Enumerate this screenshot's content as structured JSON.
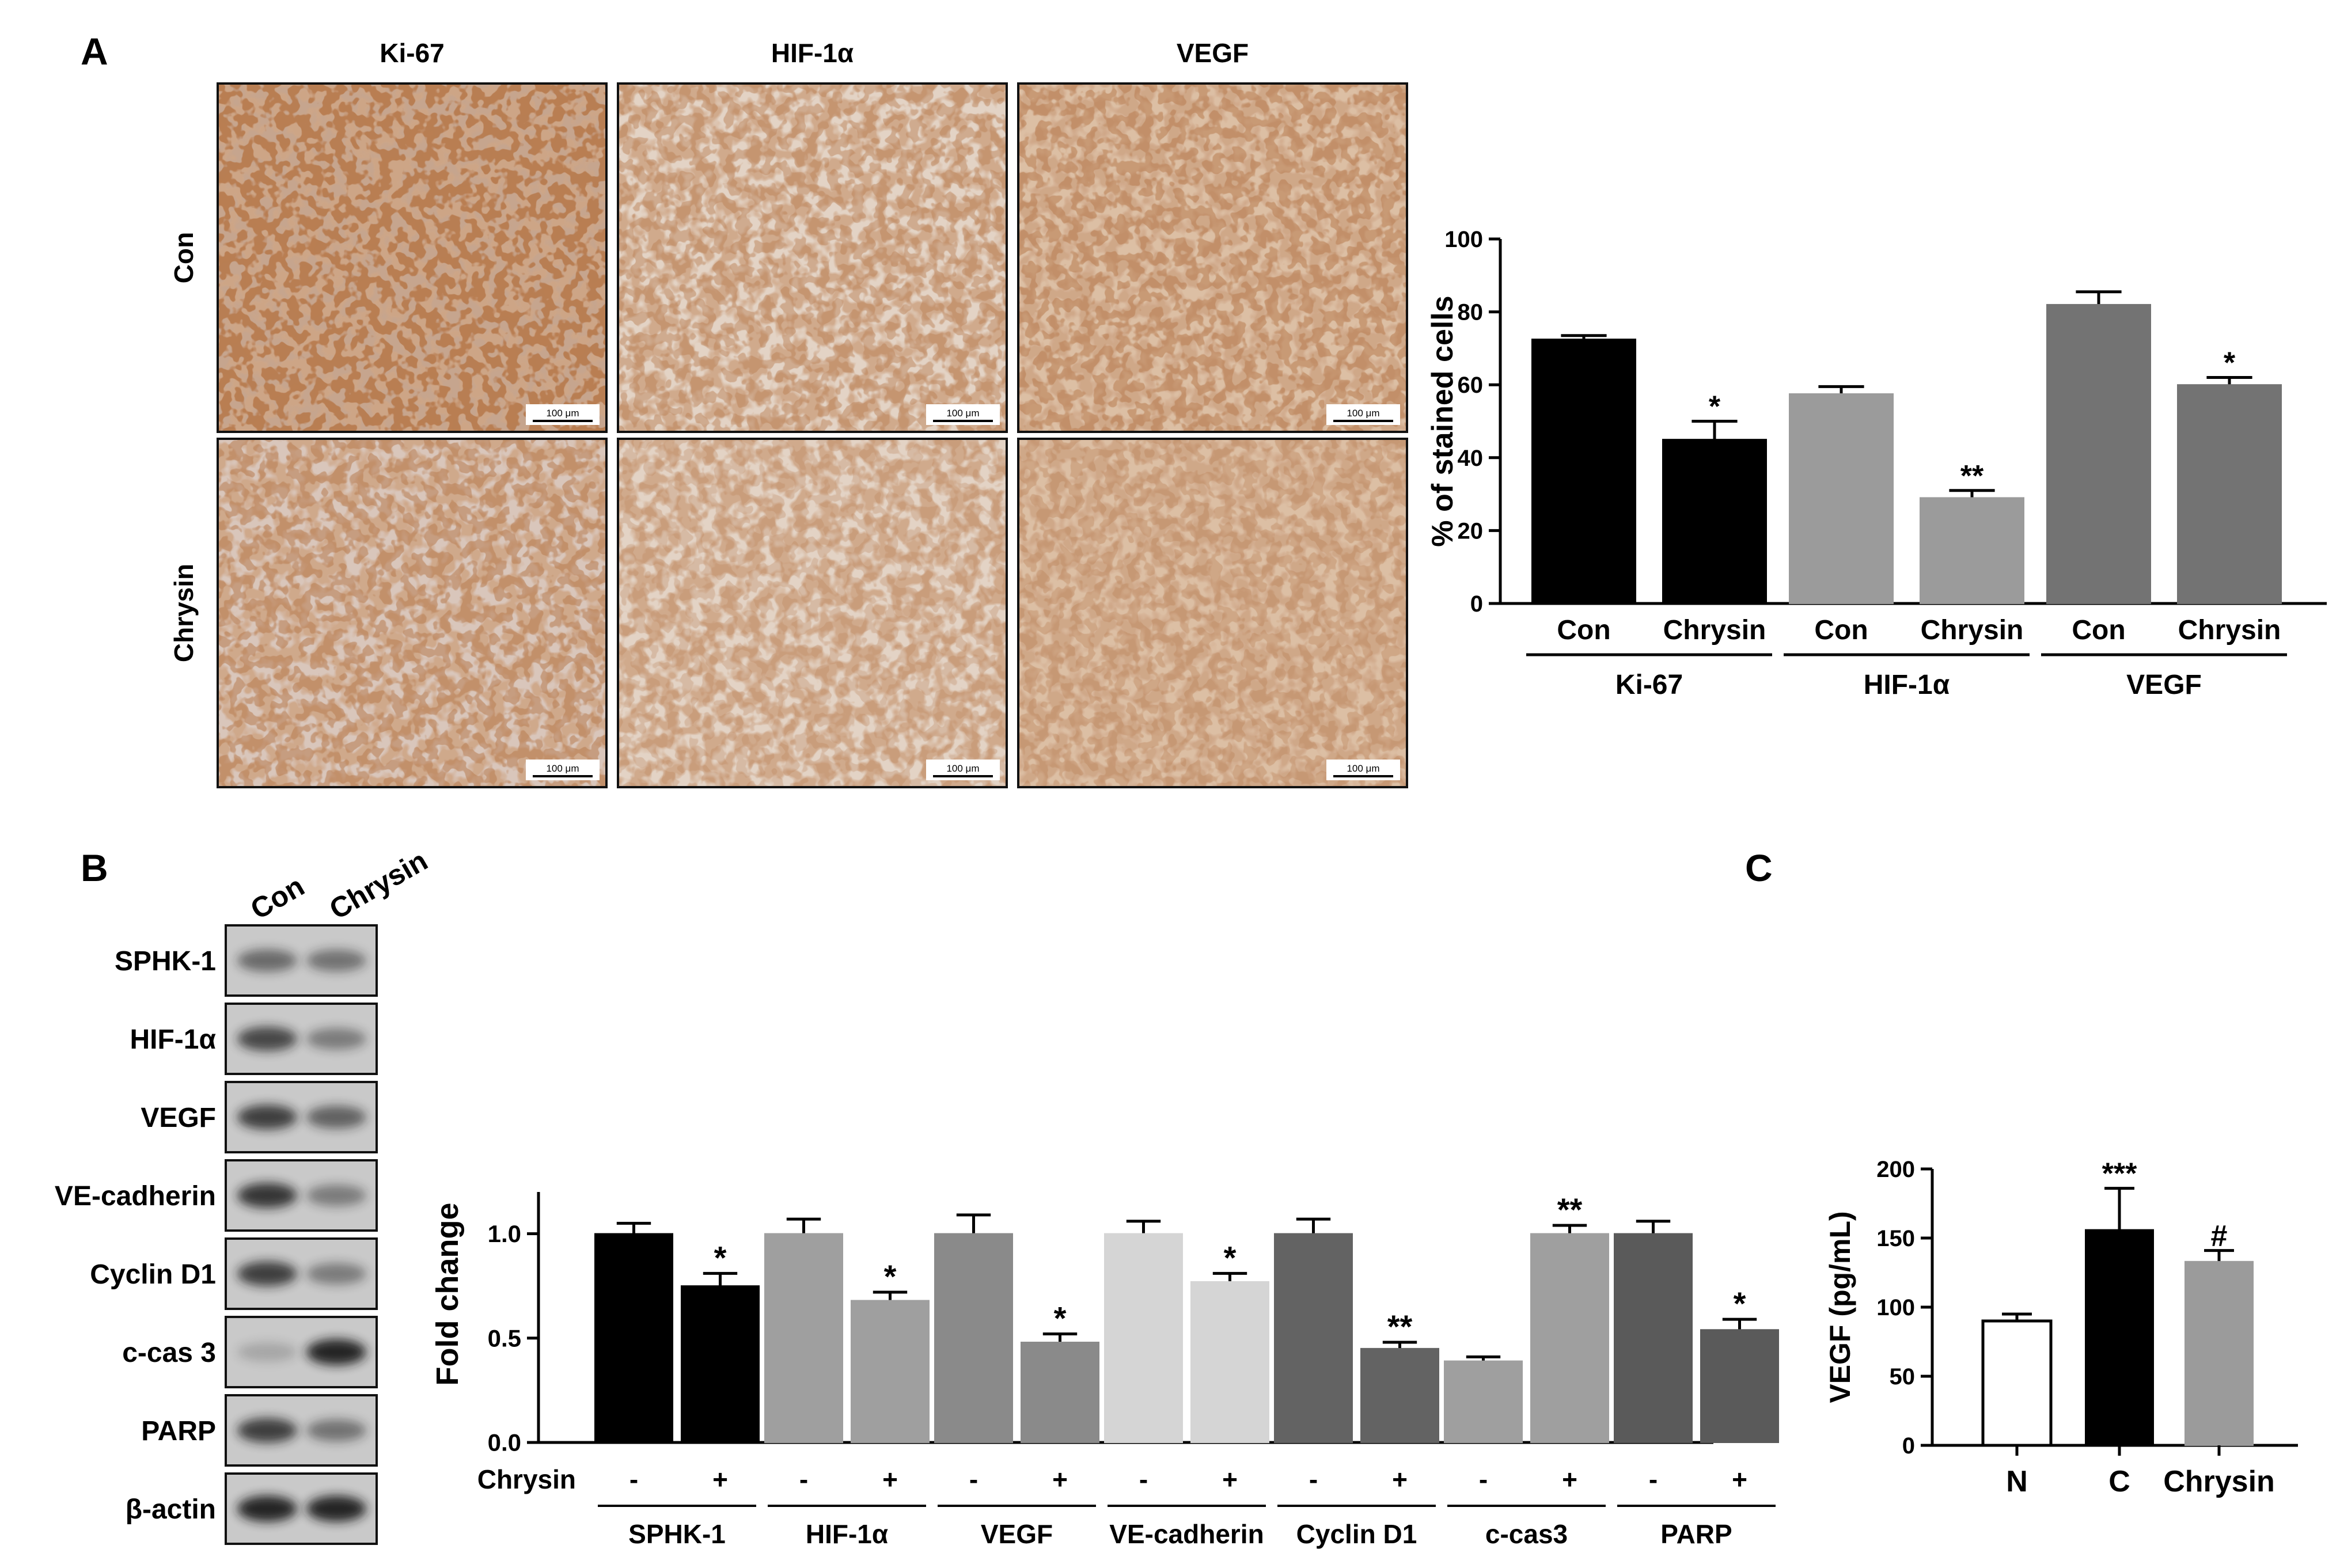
{
  "panel_a": {
    "letter": "A",
    "columns": [
      "Ki-67",
      "HIF-1α",
      "VEGF"
    ],
    "rows": [
      "Con",
      "Chrysin"
    ],
    "scale_bar": "100 μm",
    "stain": {
      "Con": {
        "Ki-67": 0.95,
        "HIF-1α": 0.45,
        "VEGF": 0.55
      },
      "Chrysin": {
        "Ki-67": 0.55,
        "HIF-1α": 0.28,
        "VEGF": 0.35
      }
    }
  },
  "panel_b": {
    "letter": "B",
    "lane_labels": [
      "Con",
      "Chrysin"
    ],
    "blot_labels": [
      "SPHK-1",
      "HIF-1α",
      "VEGF",
      "VE-cadherin",
      "Cyclin D1",
      "c-cas 3",
      "PARP",
      "β-actin"
    ]
  },
  "panel_c": {
    "letter": "C"
  },
  "chart_data": [
    {
      "type": "bar",
      "ylabel": "% of stained cells",
      "ylim": [
        0,
        100
      ],
      "yticks": [
        0,
        20,
        40,
        60,
        80,
        100
      ],
      "groups": [
        "Ki-67",
        "HIF-1α",
        "VEGF"
      ],
      "x_labels": [
        "Con",
        "Chrysin",
        "Con",
        "Chrysin",
        "Con",
        "Chrysin"
      ],
      "values": [
        72.5,
        45,
        57.5,
        29,
        82,
        60
      ],
      "errors": [
        1,
        5,
        2,
        2,
        3.5,
        2
      ],
      "significance": [
        "",
        "*",
        "",
        "**",
        "",
        "*"
      ],
      "colors": [
        "#000000",
        "#000000",
        "#9b9b9b",
        "#9b9b9b",
        "#737373",
        "#737373"
      ]
    },
    {
      "type": "bar",
      "ylabel": "Fold change",
      "ylim": [
        0,
        1.2
      ],
      "yticks": [
        "0.0",
        "0.5",
        "1.0"
      ],
      "treatment_label": "Chrysin",
      "treatment_marks": [
        "-",
        "+"
      ],
      "groups": [
        "SPHK-1",
        "HIF-1α",
        "VEGF",
        "VE-cadherin",
        "Cyclin D1",
        "c-cas3",
        "PARP"
      ],
      "values": [
        1.0,
        0.75,
        1.0,
        0.68,
        1.0,
        0.48,
        1.0,
        0.77,
        1.0,
        0.45,
        0.39,
        1.0,
        1.0,
        0.54
      ],
      "errors": [
        0.05,
        0.06,
        0.07,
        0.04,
        0.09,
        0.04,
        0.06,
        0.04,
        0.07,
        0.03,
        0.02,
        0.04,
        0.06,
        0.05
      ],
      "significance": [
        "",
        "*",
        "",
        "*",
        "",
        "*",
        "",
        "*",
        "",
        "**",
        "",
        "**",
        "",
        "*"
      ],
      "colors": [
        "#000000",
        "#000000",
        "#9f9f9f",
        "#9f9f9f",
        "#8a8a8a",
        "#8a8a8a",
        "#d5d5d5",
        "#d5d5d5",
        "#636363",
        "#636363",
        "#9f9f9f",
        "#9f9f9f",
        "#5a5a5a",
        "#5a5a5a"
      ]
    },
    {
      "type": "bar",
      "ylabel": "VEGF (pg/mL)",
      "ylim": [
        0,
        200
      ],
      "yticks": [
        0,
        50,
        100,
        150,
        200
      ],
      "categories": [
        "N",
        "C",
        "Chrysin"
      ],
      "values": [
        90,
        156,
        133
      ],
      "errors": [
        5,
        30,
        8
      ],
      "significance": [
        "",
        "***",
        "#"
      ],
      "colors": [
        "#ffffff",
        "#000000",
        "#9b9b9b"
      ]
    }
  ]
}
